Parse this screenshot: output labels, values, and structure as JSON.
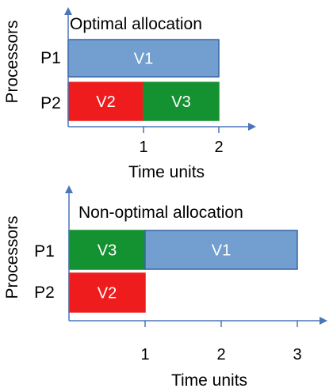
{
  "colors": {
    "axis": "#4a76b8",
    "V1": "#729fcf",
    "V1_stroke": "#3465a4",
    "V2": "#ee1c1c",
    "V3": "#149131"
  },
  "panels": [
    {
      "id": "optimal",
      "title": "Optimal allocation",
      "xlabel": "Time units",
      "ylabel": "Processors",
      "processors": [
        "P1",
        "P2"
      ],
      "ticks": [
        "1",
        "2"
      ],
      "schedule": [
        {
          "processor": "P1",
          "task": "V1",
          "start": 0,
          "end": 2
        },
        {
          "processor": "P2",
          "task": "V2",
          "start": 0,
          "end": 1
        },
        {
          "processor": "P2",
          "task": "V3",
          "start": 1,
          "end": 2
        }
      ]
    },
    {
      "id": "non-optimal",
      "title": "Non-optimal allocation",
      "xlabel": "Time units",
      "ylabel": "Processors",
      "processors": [
        "P1",
        "P2"
      ],
      "ticks": [
        "1",
        "2",
        "3"
      ],
      "schedule": [
        {
          "processor": "P1",
          "task": "V3",
          "start": 0,
          "end": 1
        },
        {
          "processor": "P1",
          "task": "V1",
          "start": 1,
          "end": 3
        },
        {
          "processor": "P2",
          "task": "V2",
          "start": 0,
          "end": 1
        }
      ]
    }
  ]
}
